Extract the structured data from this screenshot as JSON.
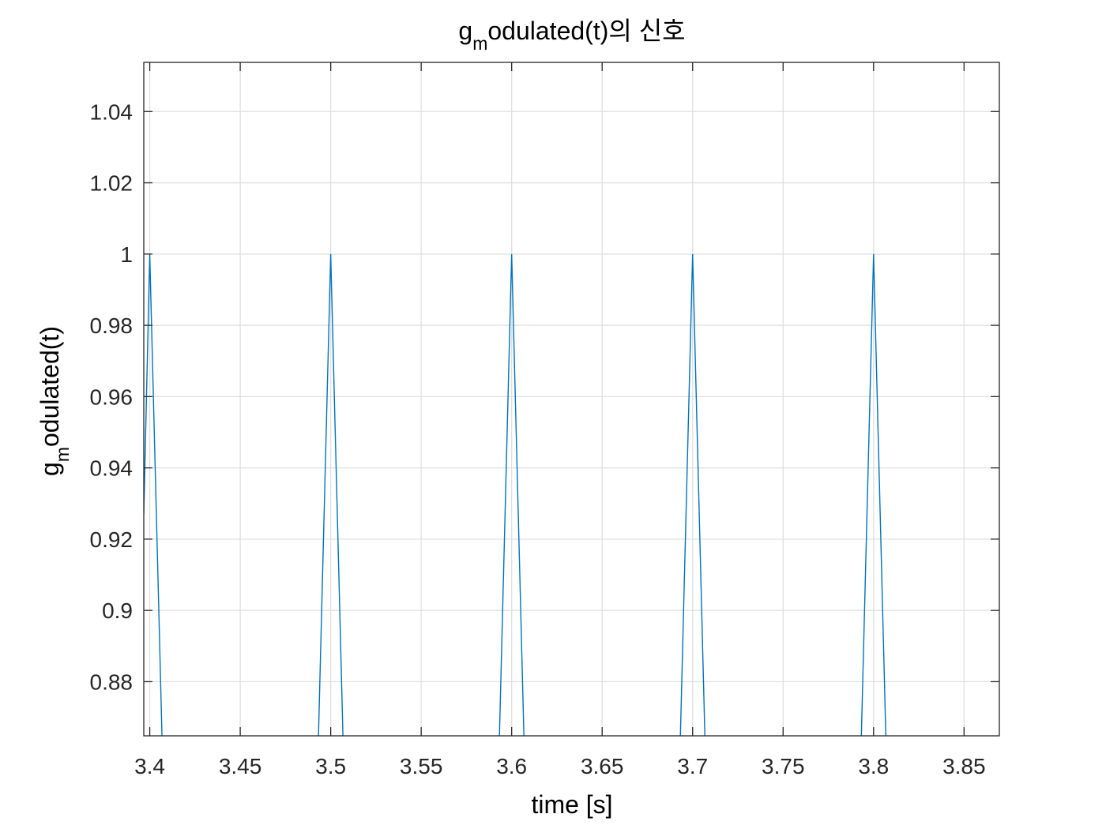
{
  "chart_data": {
    "type": "line",
    "title": {
      "main": "g",
      "subscript": "m",
      "rest": "odulated(t)의 신호"
    },
    "xlabel": "time [s]",
    "ylabel": {
      "main": "g",
      "subscript": "m",
      "rest": "odulated(t)"
    },
    "xlim": [
      3.3967,
      3.8695
    ],
    "ylim": [
      0.8648,
      1.0538
    ],
    "xticks": [
      3.4,
      3.45,
      3.5,
      3.55,
      3.6,
      3.65,
      3.7,
      3.75,
      3.8,
      3.85
    ],
    "xtick_labels": [
      "3.4",
      "3.45",
      "3.5",
      "3.55",
      "3.6",
      "3.65",
      "3.7",
      "3.75",
      "3.8",
      "3.85"
    ],
    "yticks": [
      0.88,
      0.9,
      0.92,
      0.94,
      0.96,
      0.98,
      1.0,
      1.02,
      1.04
    ],
    "ytick_labels": [
      "0.88",
      "0.9",
      "0.92",
      "0.94",
      "0.96",
      "0.98",
      "1",
      "1.02",
      "1.04"
    ],
    "grid": true,
    "box": true,
    "series": [
      {
        "color": "#0072bd",
        "x": [
          3.3967,
          3.4,
          3.4071,
          3.4929,
          3.5,
          3.5071,
          3.5929,
          3.6,
          3.6071,
          3.6929,
          3.7,
          3.7071,
          3.7929,
          3.8,
          3.8071
        ],
        "y": [
          0.927,
          1.0,
          0.858,
          0.858,
          1.0,
          0.858,
          0.858,
          1.0,
          0.858,
          0.858,
          1.0,
          0.858,
          0.858,
          1.0,
          0.858
        ]
      }
    ]
  }
}
